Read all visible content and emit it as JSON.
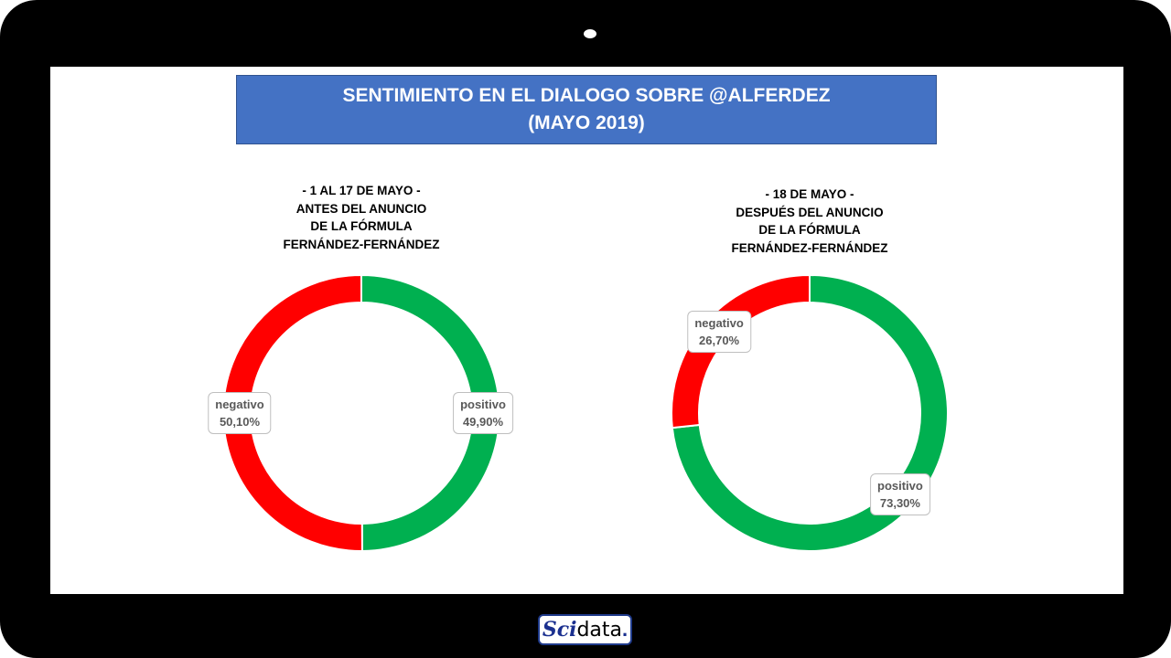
{
  "title": {
    "line1": "SENTIMIENTO EN EL DIALOGO SOBRE @ALFERDEZ",
    "line2": "(MAYO 2019)"
  },
  "colors": {
    "positivo": "#00B050",
    "negativo": "#FF0000",
    "title_bg": "#4472C4"
  },
  "logo": {
    "part1": "Sci",
    "part2": "data",
    "part3": "."
  },
  "chart_data": [
    {
      "type": "pie",
      "subtitle": [
        "- 1 AL 17 DE MAYO -",
        "ANTES DEL ANUNCIO",
        "DE LA FÓRMULA",
        "FERNÁNDEZ-FERNÁNDEZ"
      ],
      "slices": [
        {
          "label": "positivo",
          "value": 49.9,
          "display": "49,90%"
        },
        {
          "label": "negativo",
          "value": 50.1,
          "display": "50,10%"
        }
      ]
    },
    {
      "type": "pie",
      "subtitle": [
        "- 18 DE MAYO -",
        "DESPUÉS DEL ANUNCIO",
        "DE LA FÓRMULA",
        "FERNÁNDEZ-FERNÁNDEZ"
      ],
      "slices": [
        {
          "label": "positivo",
          "value": 73.3,
          "display": "73,30%"
        },
        {
          "label": "negativo",
          "value": 26.7,
          "display": "26,70%"
        }
      ]
    }
  ]
}
